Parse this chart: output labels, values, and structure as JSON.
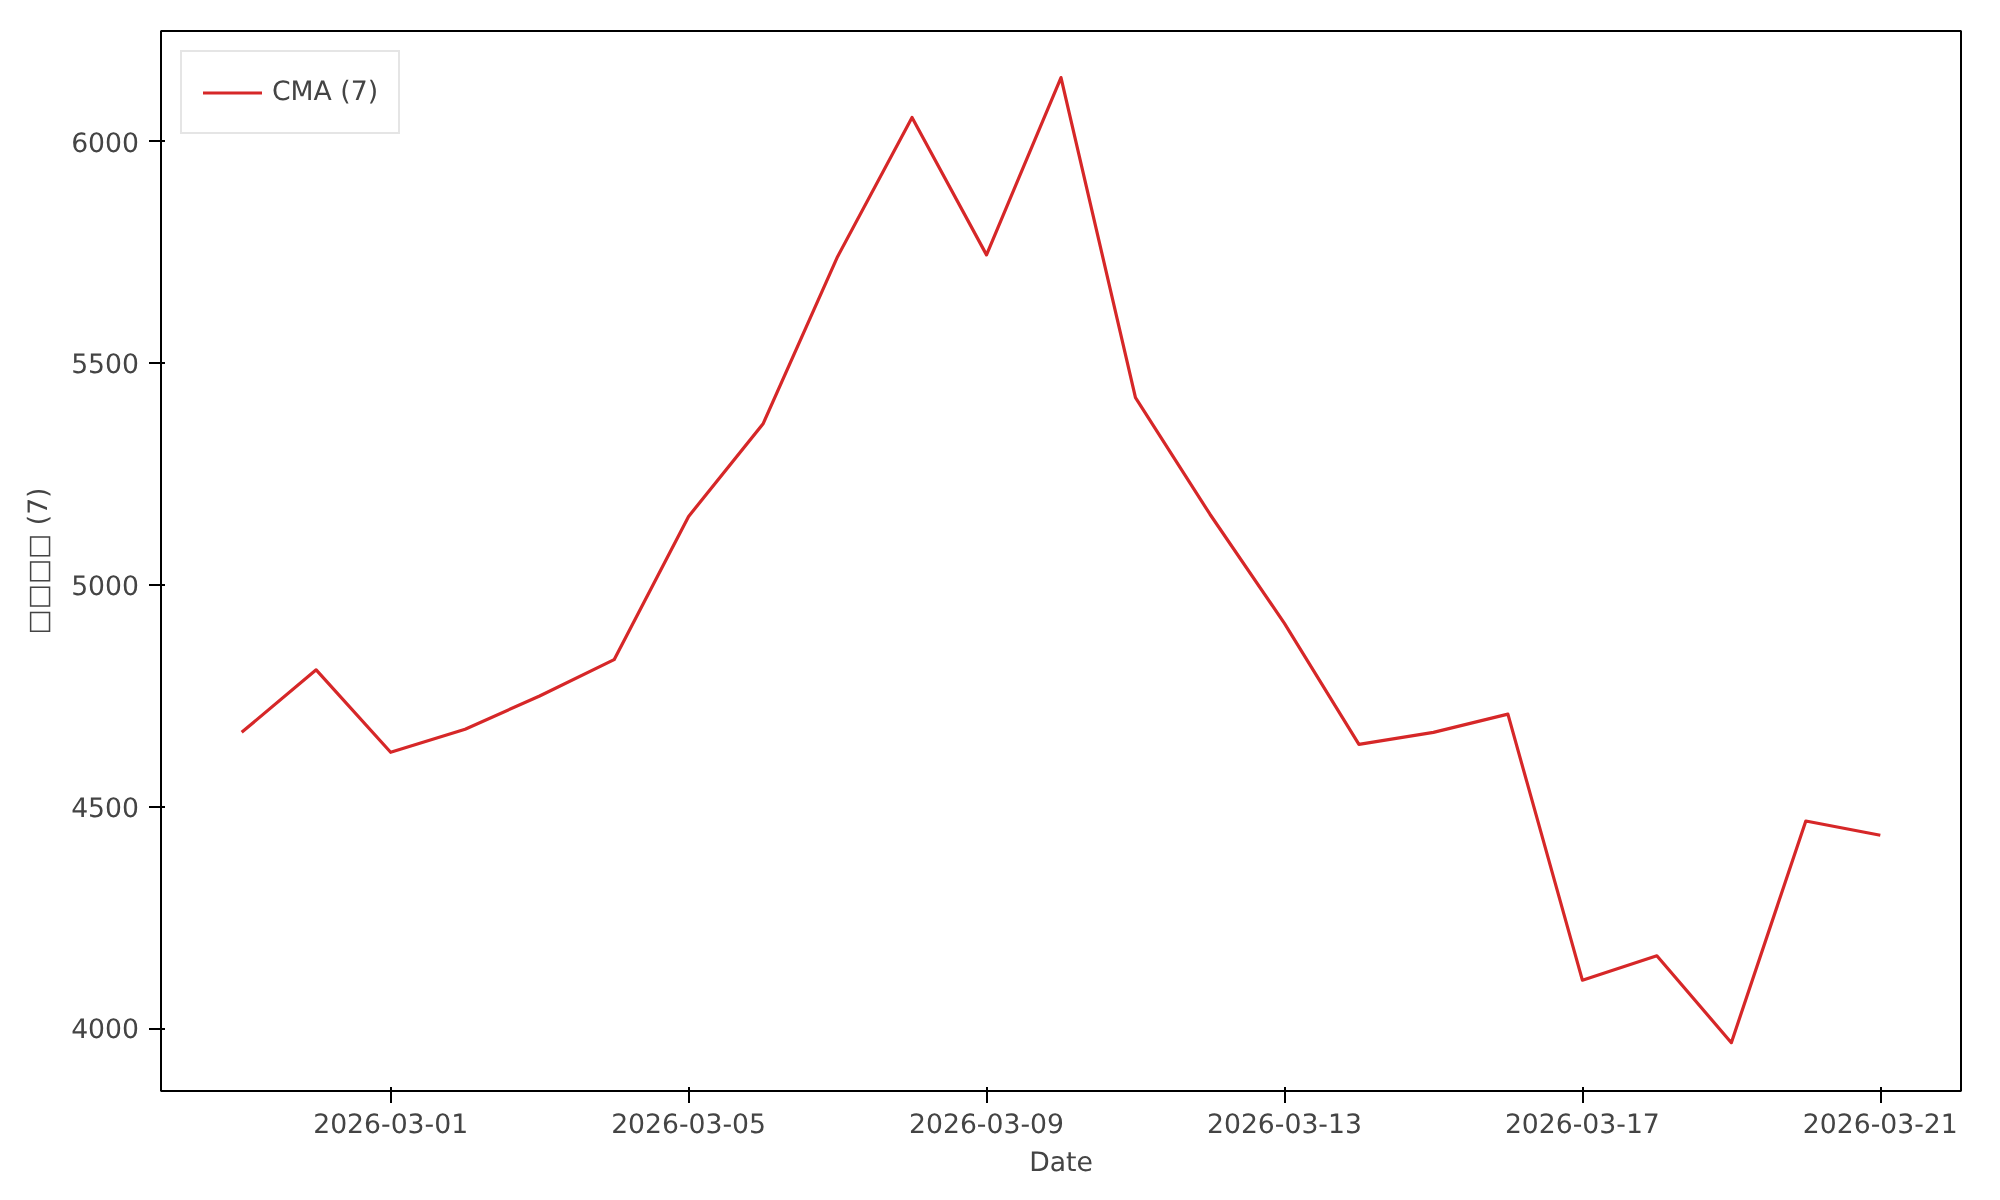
{
  "chart_data": {
    "type": "line",
    "xlabel": "Date",
    "ylabel": "□□□□ (7)",
    "x": [
      "2026-02-27",
      "2026-02-28",
      "2026-03-01",
      "2026-03-02",
      "2026-03-03",
      "2026-03-04",
      "2026-03-05",
      "2026-03-06",
      "2026-03-07",
      "2026-03-08",
      "2026-03-09",
      "2026-03-10",
      "2026-03-11",
      "2026-03-12",
      "2026-03-13",
      "2026-03-14",
      "2026-03-15",
      "2026-03-16",
      "2026-03-17",
      "2026-03-18",
      "2026-03-19",
      "2026-03-20",
      "2026-03-21"
    ],
    "series": [
      {
        "name": "CMA (7)",
        "color": "#d62728",
        "values": [
          4668,
          4809,
          4623,
          4675,
          4750,
          4832,
          5155,
          5364,
          5741,
          6055,
          5745,
          6145,
          5423,
          5160,
          4914,
          4641,
          4668,
          4709,
          4109,
          4164,
          3968,
          4468,
          4436
        ]
      }
    ],
    "xlim": [
      "2026-02-25T22:00",
      "2026-03-22T02:00"
    ],
    "xticks": [
      "2026-03-01",
      "2026-03-05",
      "2026-03-09",
      "2026-03-13",
      "2026-03-17",
      "2026-03-21"
    ],
    "ylim": [
      3859,
      6250
    ],
    "yticks": [
      4000,
      4500,
      5000,
      5500,
      6000
    ],
    "grid": false,
    "legend": "top left",
    "line_style": "solid",
    "marker": "none"
  }
}
